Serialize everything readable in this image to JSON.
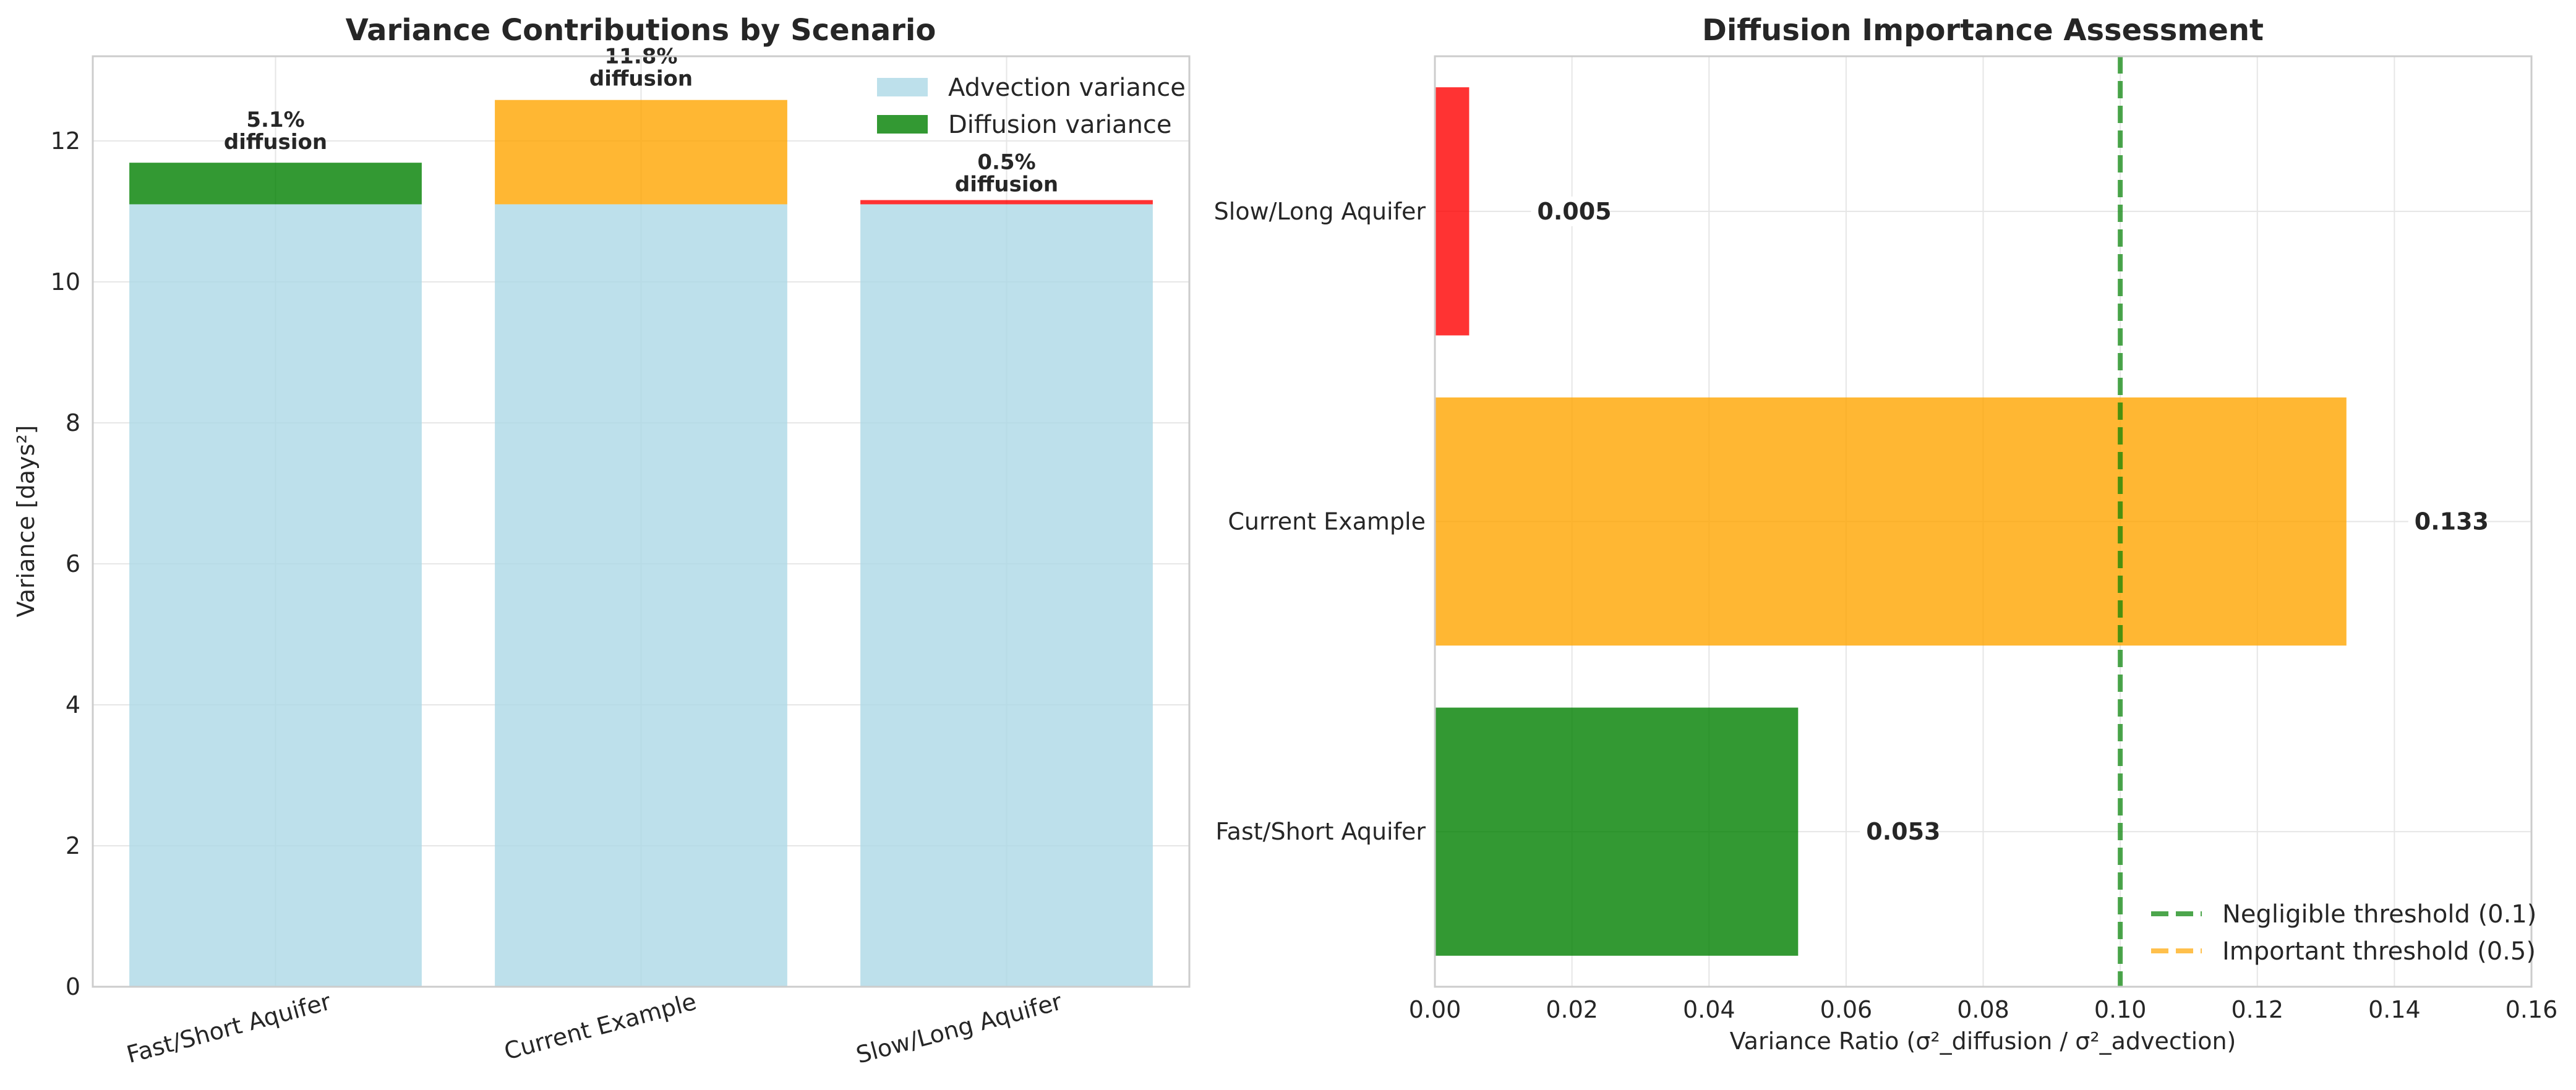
{
  "chart_data": [
    {
      "type": "bar",
      "stacked": true,
      "title": "Variance Contributions by Scenario",
      "xlabel": "",
      "ylabel": "Variance [days²]",
      "categories": [
        "Fast/Short Aquifer",
        "Current Example",
        "Slow/Long Aquifer"
      ],
      "ylim": [
        0,
        13.2
      ],
      "yticks": [
        0,
        2,
        4,
        6,
        8,
        10,
        12
      ],
      "grid": true,
      "legend_position": "top-right",
      "series": [
        {
          "name": "Advection variance",
          "values": [
            11.1,
            11.1,
            11.1
          ],
          "colors": [
            "#add8e6",
            "#add8e6",
            "#add8e6"
          ],
          "legend_color": "#add8e6"
        },
        {
          "name": "Diffusion variance",
          "values": [
            0.59,
            1.48,
            0.06
          ],
          "colors": [
            "#008000",
            "#ffa500",
            "#ff0000"
          ],
          "legend_color": "#008000"
        }
      ],
      "annotations": [
        {
          "line1": "5.1%",
          "line2": "diffusion",
          "y": 12.2
        },
        {
          "line1": "11.8%",
          "line2": "diffusion",
          "y": 13.1
        },
        {
          "line1": "0.5%",
          "line2": "diffusion",
          "y": 11.6
        }
      ]
    },
    {
      "type": "bar",
      "orientation": "horizontal",
      "title": "Diffusion Importance Assessment",
      "xlabel": "Variance Ratio (σ²_diffusion / σ²_advection)",
      "ylabel": "",
      "categories": [
        "Fast/Short Aquifer",
        "Current Example",
        "Slow/Long Aquifer"
      ],
      "values": [
        0.053,
        0.133,
        0.005
      ],
      "value_labels": [
        "0.053",
        "0.133",
        "0.005"
      ],
      "colors": [
        "#008000",
        "#ffa500",
        "#ff0000"
      ],
      "xlim": [
        0,
        0.16
      ],
      "xticks": [
        "0.00",
        "0.02",
        "0.04",
        "0.06",
        "0.08",
        "0.10",
        "0.12",
        "0.14",
        "0.16"
      ],
      "grid": true,
      "legend_position": "bottom-right",
      "thresholds": [
        {
          "name": "Negligible threshold (0.1)",
          "value": 0.1,
          "color": "#008000"
        },
        {
          "name": "Important threshold (0.5)",
          "value": 0.5,
          "color": "#ffa500"
        }
      ]
    }
  ]
}
